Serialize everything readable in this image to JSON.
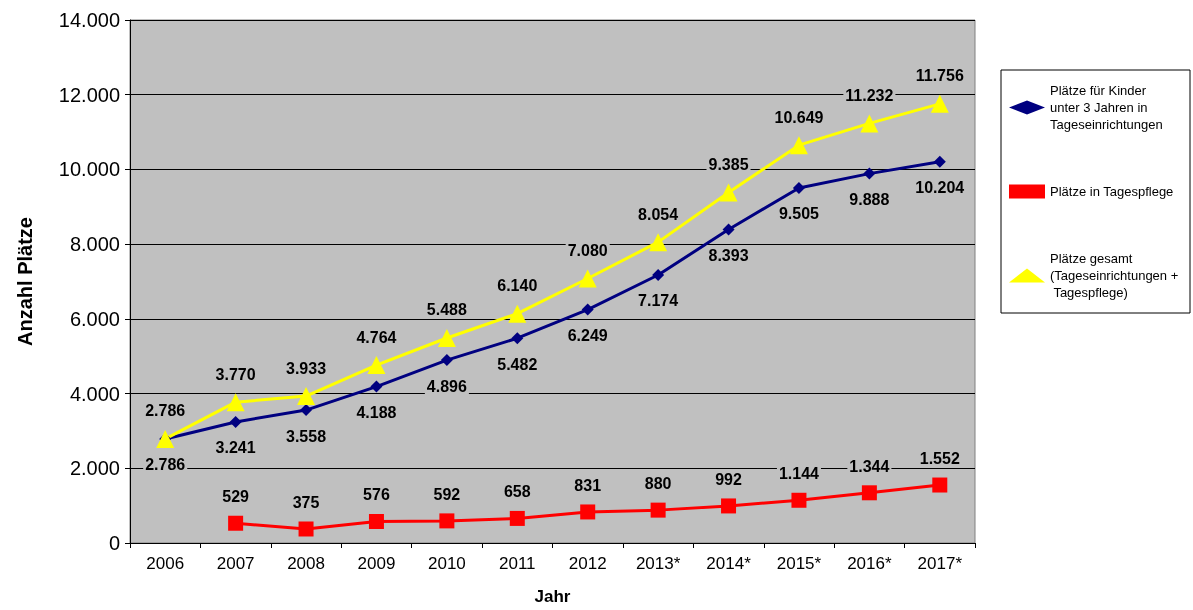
{
  "chart_data": {
    "type": "line",
    "xlabel": "Jahr",
    "ylabel": "Anzahl Plätze",
    "categories": [
      "2006",
      "2007",
      "2008",
      "2009",
      "2010",
      "2011",
      "2012",
      "2013*",
      "2014*",
      "2015*",
      "2016*",
      "2017*"
    ],
    "series": [
      {
        "name": "Plätze für Kinder unter 3 Jahren in Tageseinrichtungen",
        "color": "#000080",
        "marker": "diamond",
        "values": [
          2786,
          3241,
          3558,
          4188,
          4896,
          5482,
          6249,
          7174,
          8393,
          9505,
          9888,
          10204
        ],
        "value_labels": [
          "2.786",
          "3.241",
          "3.558",
          "4.188",
          "4.896",
          "5.482",
          "6.249",
          "7.174",
          "8.393",
          "9.505",
          "9.888",
          "10.204"
        ]
      },
      {
        "name": "Plätze in Tagespflege",
        "color": "#ff0000",
        "marker": "square",
        "values": [
          null,
          529,
          375,
          576,
          592,
          658,
          831,
          880,
          992,
          1144,
          1344,
          1552
        ],
        "value_labels": [
          null,
          "529",
          "375",
          "576",
          "592",
          "658",
          "831",
          "880",
          "992",
          "1.144",
          "1.344",
          "1.552"
        ]
      },
      {
        "name": "Plätze gesamt (Tageseinrichtungen + Tagespflege)",
        "color": "#ffff00",
        "marker": "triangle",
        "values": [
          2786,
          3770,
          3933,
          4764,
          5488,
          6140,
          7080,
          8054,
          9385,
          10649,
          11232,
          11756
        ],
        "value_labels": [
          "2.786",
          "3.770",
          "3.933",
          "4.764",
          "5.488",
          "6.140",
          "7.080",
          "8.054",
          "9.385",
          "10.649",
          "11.232",
          "11.756"
        ]
      }
    ],
    "ylim": [
      0,
      14000
    ],
    "yticks": [
      {
        "value": 0,
        "label": "0"
      },
      {
        "value": 2000,
        "label": "2.000"
      },
      {
        "value": 4000,
        "label": "4.000"
      },
      {
        "value": 6000,
        "label": "6.000"
      },
      {
        "value": 8000,
        "label": "8.000"
      },
      {
        "value": 10000,
        "label": "10.000"
      },
      {
        "value": 12000,
        "label": "12.000"
      },
      {
        "value": 14000,
        "label": "14.000"
      }
    ],
    "grid": "y",
    "legend": "right",
    "line_style": "solid"
  }
}
